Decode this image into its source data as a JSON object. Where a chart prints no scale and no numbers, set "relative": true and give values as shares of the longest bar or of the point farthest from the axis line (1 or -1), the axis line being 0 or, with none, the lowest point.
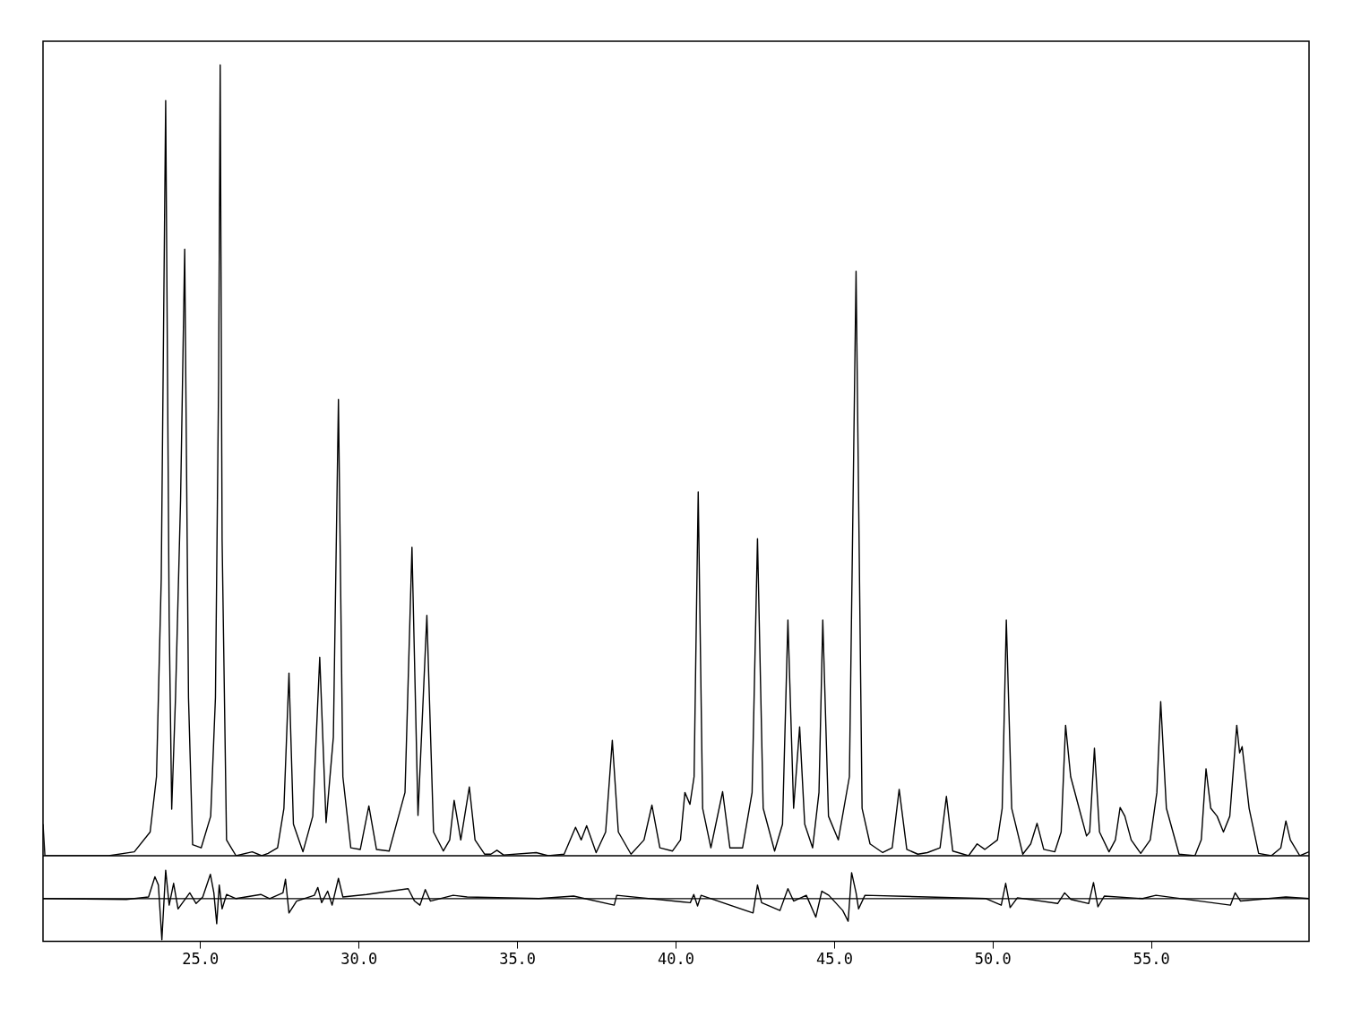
{
  "chart_data": [
    {
      "type": "line",
      "relative": true,
      "tick_labels": false,
      "xlim": [
        20.03,
        59.97
      ],
      "marker": "none",
      "series": [
        {
          "color": "#000000",
          "x": [
            20.03,
            20.09,
            22.1,
            22.91,
            23.41,
            23.61,
            23.76,
            23.9,
            24.01,
            24.09,
            24.21,
            24.37,
            24.5,
            24.62,
            24.75,
            25.02,
            25.32,
            25.47,
            25.57,
            25.62,
            25.68,
            25.82,
            26.12,
            26.63,
            26.93,
            27.13,
            27.43,
            27.63,
            27.79,
            27.93,
            28.23,
            28.54,
            28.76,
            28.96,
            29.19,
            29.35,
            29.49,
            29.74,
            30.04,
            30.31,
            30.55,
            30.95,
            31.45,
            31.67,
            31.86,
            32.14,
            32.35,
            32.66,
            32.86,
            33.0,
            33.21,
            33.48,
            33.66,
            33.96,
            34.16,
            34.35,
            34.56,
            35.59,
            35.97,
            36.47,
            36.83,
            37.01,
            37.18,
            37.48,
            37.78,
            37.99,
            38.18,
            38.58,
            38.99,
            39.24,
            39.49,
            39.89,
            40.14,
            40.28,
            40.44,
            40.57,
            40.7,
            40.84,
            41.1,
            41.47,
            41.7,
            42.1,
            42.4,
            42.57,
            42.75,
            43.11,
            43.36,
            43.53,
            43.71,
            43.9,
            44.06,
            44.31,
            44.51,
            44.63,
            44.81,
            45.12,
            45.47,
            45.68,
            45.87,
            46.12,
            46.52,
            46.82,
            47.04,
            47.28,
            47.63,
            47.93,
            48.33,
            48.53,
            48.73,
            49.23,
            49.5,
            49.74,
            50.14,
            50.29,
            50.42,
            50.59,
            50.94,
            51.19,
            51.39,
            51.6,
            51.95,
            52.15,
            52.29,
            52.45,
            52.75,
            52.95,
            53.05,
            53.2,
            53.36,
            53.66,
            53.86,
            54.01,
            54.16,
            54.36,
            54.66,
            54.96,
            55.17,
            55.29,
            55.47,
            55.87,
            56.37,
            56.57,
            56.72,
            56.87,
            57.07,
            57.27,
            57.47,
            57.69,
            57.78,
            57.86,
            58.08,
            58.38,
            58.78,
            59.08,
            59.24,
            59.38,
            59.68,
            59.97
          ],
          "values": [
            0.04,
            0.0,
            0.0,
            0.005,
            0.03,
            0.1,
            0.35,
            0.955,
            0.3,
            0.059,
            0.2,
            0.45,
            0.767,
            0.2,
            0.014,
            0.01,
            0.05,
            0.2,
            0.6,
            1.0,
            0.4,
            0.02,
            0.0,
            0.005,
            0.0,
            0.003,
            0.01,
            0.06,
            0.231,
            0.04,
            0.005,
            0.05,
            0.251,
            0.042,
            0.15,
            0.577,
            0.1,
            0.01,
            0.008,
            0.063,
            0.008,
            0.006,
            0.08,
            0.39,
            0.051,
            0.304,
            0.03,
            0.006,
            0.02,
            0.07,
            0.02,
            0.087,
            0.02,
            0.002,
            0.002,
            0.007,
            0.001,
            0.004,
            0.0,
            0.002,
            0.036,
            0.02,
            0.038,
            0.004,
            0.03,
            0.146,
            0.03,
            0.002,
            0.02,
            0.064,
            0.01,
            0.006,
            0.02,
            0.08,
            0.065,
            0.1,
            0.46,
            0.06,
            0.01,
            0.081,
            0.01,
            0.01,
            0.08,
            0.401,
            0.06,
            0.006,
            0.04,
            0.298,
            0.06,
            0.163,
            0.04,
            0.01,
            0.08,
            0.298,
            0.05,
            0.02,
            0.1,
            0.739,
            0.06,
            0.015,
            0.004,
            0.01,
            0.084,
            0.008,
            0.002,
            0.004,
            0.01,
            0.075,
            0.006,
            0.0,
            0.015,
            0.008,
            0.02,
            0.06,
            0.298,
            0.06,
            0.002,
            0.015,
            0.041,
            0.008,
            0.005,
            0.03,
            0.165,
            0.1,
            0.055,
            0.025,
            0.03,
            0.136,
            0.03,
            0.005,
            0.02,
            0.061,
            0.05,
            0.02,
            0.003,
            0.02,
            0.08,
            0.195,
            0.06,
            0.002,
            0.0,
            0.02,
            0.11,
            0.06,
            0.05,
            0.03,
            0.05,
            0.165,
            0.13,
            0.138,
            0.06,
            0.003,
            0.0,
            0.01,
            0.044,
            0.02,
            0.0,
            0.005
          ]
        }
      ]
    },
    {
      "type": "line",
      "relative": true,
      "xlim": [
        20.03,
        59.97
      ],
      "marker": "none",
      "ref_lines": [
        {
          "axis": "y",
          "value": 0
        }
      ],
      "xticks": [
        {
          "value": 25,
          "label": "25.0"
        },
        {
          "value": 30,
          "label": "30.0"
        },
        {
          "value": 35,
          "label": "35.0"
        },
        {
          "value": 40,
          "label": "40.0"
        },
        {
          "value": 45,
          "label": "45.0"
        },
        {
          "value": 50,
          "label": "50.0"
        },
        {
          "value": 55,
          "label": "55.0"
        }
      ],
      "series": [
        {
          "color": "#000000",
          "x": [
            20.03,
            22.66,
            23.36,
            23.56,
            23.67,
            23.78,
            23.9,
            24.01,
            24.15,
            24.29,
            24.47,
            24.66,
            24.86,
            25.07,
            25.31,
            25.42,
            25.51,
            25.59,
            25.68,
            25.82,
            26.12,
            26.9,
            27.18,
            27.6,
            27.68,
            27.79,
            28.03,
            28.59,
            28.7,
            28.82,
            29.01,
            29.15,
            29.35,
            29.49,
            30.24,
            31.55,
            31.75,
            31.92,
            32.09,
            32.25,
            32.97,
            33.41,
            35.67,
            36.77,
            38.05,
            38.13,
            40.45,
            40.56,
            40.68,
            40.79,
            42.43,
            42.57,
            42.7,
            43.28,
            43.53,
            43.71,
            44.11,
            44.41,
            44.6,
            44.82,
            45.26,
            45.43,
            45.54,
            45.68,
            45.76,
            45.96,
            49.78,
            50.26,
            50.4,
            50.54,
            50.77,
            52.04,
            52.26,
            52.46,
            53.02,
            53.17,
            53.31,
            53.51,
            54.72,
            55.14,
            57.49,
            57.64,
            57.81,
            59.24,
            59.97
          ],
          "values": [
            0.0,
            -0.02,
            0.04,
            0.53,
            0.33,
            -1.0,
            0.69,
            -0.16,
            0.37,
            -0.25,
            -0.06,
            0.14,
            -0.12,
            0.04,
            0.59,
            0.14,
            -0.61,
            0.33,
            -0.25,
            0.1,
            0.0,
            0.1,
            0.0,
            0.14,
            0.47,
            -0.35,
            -0.06,
            0.08,
            0.27,
            -0.1,
            0.18,
            -0.16,
            0.49,
            0.04,
            0.1,
            0.24,
            -0.06,
            -0.16,
            0.22,
            -0.06,
            0.08,
            0.04,
            0.0,
            0.06,
            -0.16,
            0.08,
            -0.1,
            0.1,
            -0.18,
            0.08,
            -0.35,
            0.33,
            -0.1,
            -0.29,
            0.24,
            -0.06,
            0.08,
            -0.45,
            0.18,
            0.08,
            -0.29,
            -0.55,
            0.63,
            0.14,
            -0.25,
            0.08,
            0.0,
            -0.16,
            0.37,
            -0.22,
            0.02,
            -0.12,
            0.14,
            -0.02,
            -0.12,
            0.39,
            -0.2,
            0.06,
            0.0,
            0.08,
            -0.16,
            0.14,
            -0.06,
            0.04,
            0.0
          ]
        }
      ]
    }
  ]
}
